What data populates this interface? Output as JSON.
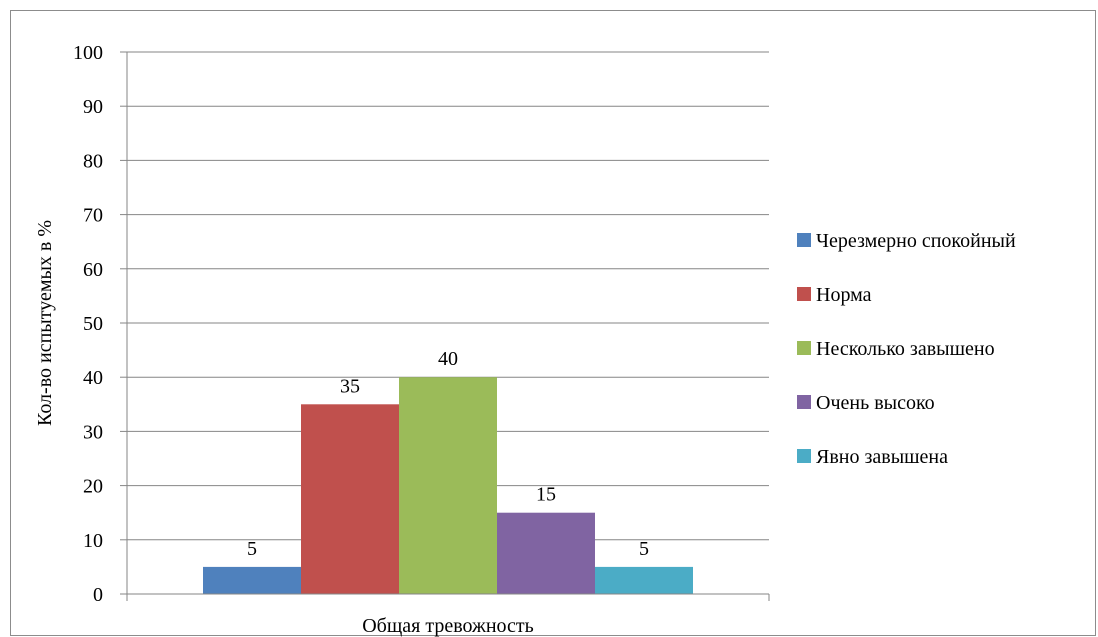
{
  "chart_data": {
    "type": "bar",
    "categories": [
      "Общая тревожность"
    ],
    "series": [
      {
        "name": "Черезмерно спокойный",
        "values": [
          5
        ],
        "color": "#4f81bd"
      },
      {
        "name": "Норма",
        "values": [
          35
        ],
        "color": "#c0504d"
      },
      {
        "name": "Несколько завышено",
        "values": [
          40
        ],
        "color": "#9bbb59"
      },
      {
        "name": "Очень высоко",
        "values": [
          15
        ],
        "color": "#8064a2"
      },
      {
        "name": "Явно завышена",
        "values": [
          5
        ],
        "color": "#4bacc6"
      }
    ],
    "ylabel": "Кол-во испытуемых в %",
    "ylim": [
      0,
      100
    ],
    "yticks": [
      0,
      10,
      20,
      30,
      40,
      50,
      60,
      70,
      80,
      90,
      100
    ],
    "grid": true,
    "legend": "right",
    "data_labels": true
  }
}
